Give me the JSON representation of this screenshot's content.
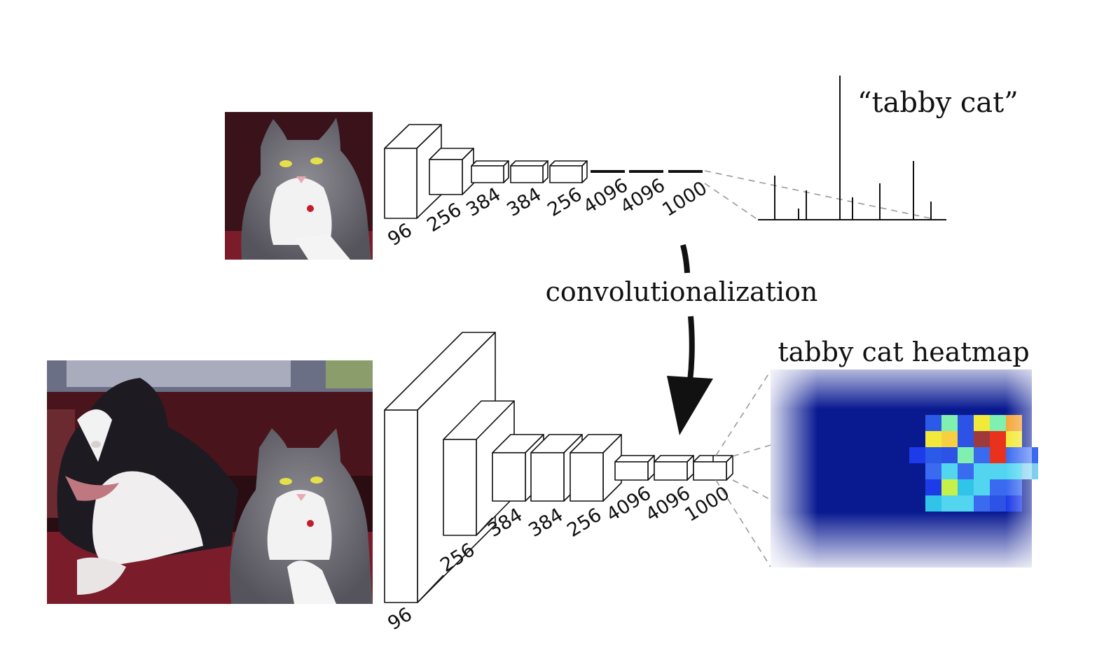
{
  "top_network": {
    "layer_labels": [
      "96",
      "256",
      "384",
      "384",
      "256",
      "4096",
      "4096",
      "1000"
    ],
    "output_label": "“tabby cat”"
  },
  "transform_label": "convolutionalization",
  "bottom_network": {
    "layer_labels": [
      "96",
      "256",
      "384",
      "384",
      "256",
      "4096",
      "4096",
      "1000"
    ],
    "output_label": "tabby cat heatmap"
  },
  "images": {
    "top_input": "cat-photo",
    "bottom_input": "dog-and-cat-photo"
  },
  "colors": {
    "heatmap_background": "#00108c",
    "heatmap_hot": "#e8321e",
    "couch": "#7a1c2a",
    "dashed_lines": "#999999"
  }
}
